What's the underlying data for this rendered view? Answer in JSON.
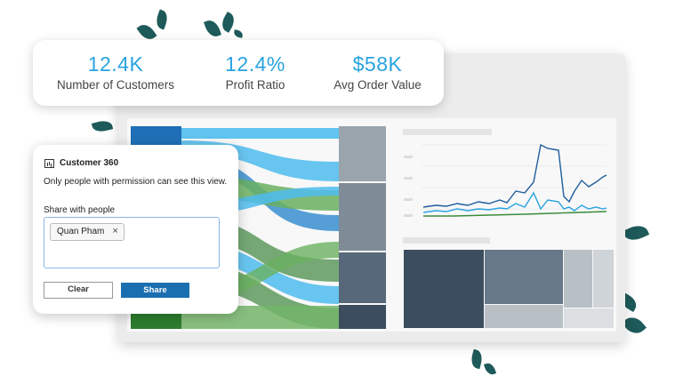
{
  "kpis": [
    {
      "value": "12.4K",
      "label": "Number of Customers"
    },
    {
      "value": "12.4%",
      "label": "Profit Ratio"
    },
    {
      "value": "$58K",
      "label": "Avg Order Value"
    }
  ],
  "share_dialog": {
    "title": "Customer 360",
    "description": "Only people with permission can see this view.",
    "share_label": "Share with people",
    "chip_name": "Quan Pham",
    "chip_remove": "×",
    "clear_label": "Clear",
    "share_label_button": "Share"
  },
  "colors": {
    "kpi_accent": "#29a3e0",
    "share_button": "#1a6fb0",
    "sankey_blue": "#4fbcee",
    "sankey_green": "#5e9a5e",
    "leaf": "#1e5a5a"
  },
  "icons": {
    "dialog": "bar-chart-icon",
    "remove": "close-icon"
  }
}
